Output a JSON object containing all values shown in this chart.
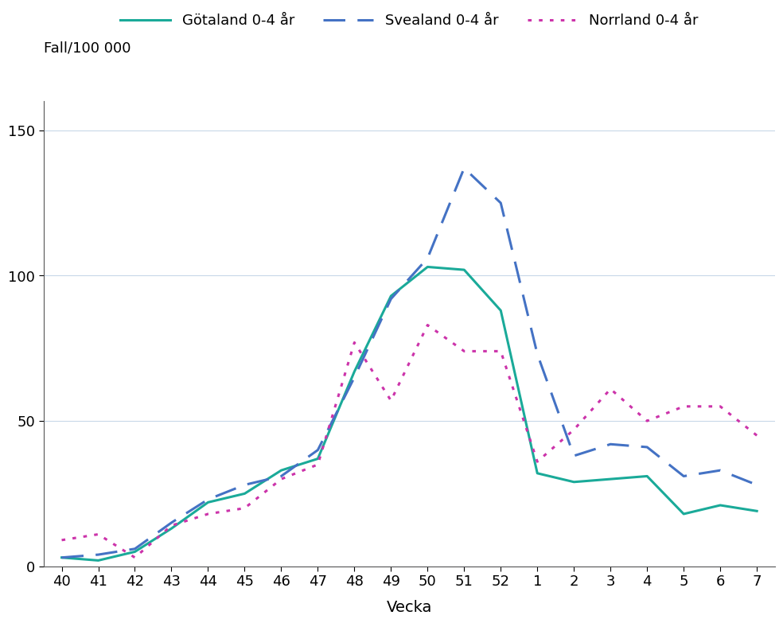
{
  "x_labels": [
    "40",
    "41",
    "42",
    "43",
    "44",
    "45",
    "46",
    "47",
    "48",
    "49",
    "50",
    "51",
    "52",
    "1",
    "2",
    "3",
    "4",
    "5",
    "6",
    "7"
  ],
  "x_positions": [
    0,
    1,
    2,
    3,
    4,
    5,
    6,
    7,
    8,
    9,
    10,
    11,
    12,
    13,
    14,
    15,
    16,
    17,
    18,
    19
  ],
  "gotaland": [
    3,
    2,
    5,
    13,
    22,
    25,
    33,
    37,
    67,
    93,
    103,
    102,
    88,
    32,
    29,
    30,
    31,
    18,
    21,
    19
  ],
  "svealand": [
    3,
    4,
    6,
    15,
    23,
    28,
    31,
    40,
    65,
    92,
    106,
    137,
    125,
    73,
    38,
    42,
    41,
    31,
    33,
    28
  ],
  "norrland": [
    9,
    11,
    3,
    14,
    18,
    20,
    30,
    35,
    77,
    57,
    83,
    74,
    74,
    36,
    47,
    61,
    50,
    55,
    55,
    45
  ],
  "gotaland_color": "#1aaa99",
  "svealand_color": "#4472C4",
  "norrland_color": "#CC33AA",
  "xlabel": "Vecka",
  "ylabel": "Fall/100 000",
  "ylim": [
    0,
    160
  ],
  "yticks": [
    0,
    50,
    100,
    150
  ],
  "legend_labels": [
    "Götaland 0-4 år",
    "Svealand 0-4 år",
    "Norrland 0-4 år"
  ],
  "background_color": "#ffffff",
  "grid_color": "#c8d8e8"
}
